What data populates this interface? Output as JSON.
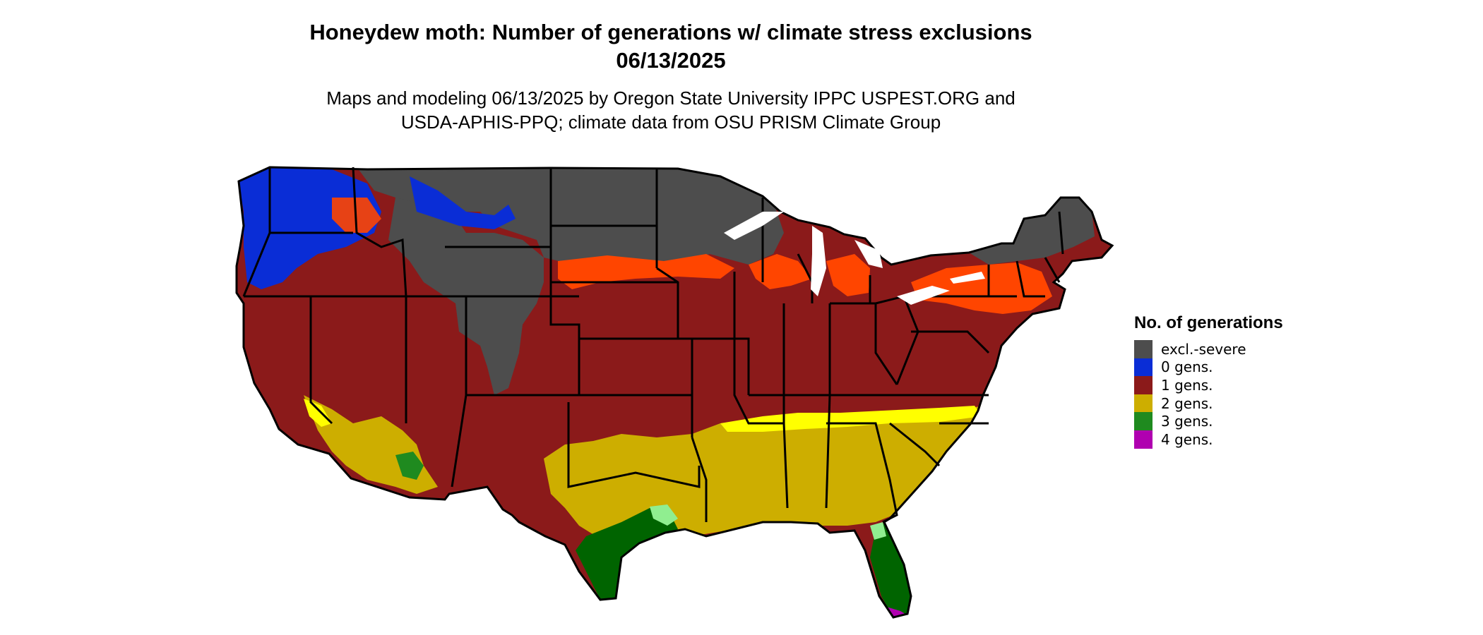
{
  "title_line1": "Honeydew moth: Number of generations w/ climate stress exclusions",
  "title_line2": "06/13/2025",
  "subtitle_line1": "Maps and modeling 06/13/2025 by Oregon State University IPPC USPEST.ORG and",
  "subtitle_line2": "USDA-APHIS-PPQ; climate data from OSU PRISM Climate Group",
  "legend": {
    "title": "No. of generations",
    "items": [
      {
        "label": "excl.-severe",
        "color": "#4d4d4d"
      },
      {
        "label": "0 gens.",
        "color": "#0a2dd6"
      },
      {
        "label": "1 gens.",
        "color": "#8b1a1a"
      },
      {
        "label": "2 gens.",
        "color": "#cdae00"
      },
      {
        "label": "3 gens.",
        "color": "#1f8a1f"
      },
      {
        "label": "4 gens.",
        "color": "#b000b0"
      }
    ]
  },
  "map_colors": {
    "excl_severe": "#4d4d4d",
    "gens_0": "#0a2dd6",
    "gens_1": "#8b1a1a",
    "gens_1_orange": "#ff4500",
    "gens_2": "#cdae00",
    "gens_2_yellow": "#ffff00",
    "gens_3": "#006400",
    "gens_3_light": "#90ee90",
    "gens_4": "#b000b0",
    "border": "#000000"
  }
}
